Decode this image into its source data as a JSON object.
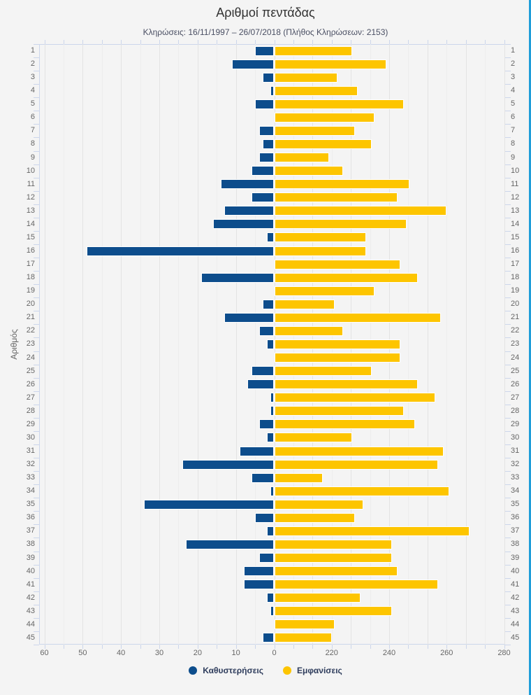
{
  "page": {
    "background": "#f4f4f4",
    "right_edge_color": "#1f9dd9"
  },
  "chart_data": {
    "type": "bar",
    "orientation": "horizontal-diverging",
    "title": "Αριθμοί πεντάδας",
    "subtitle": "Κληρώσεις: 16/11/1997 – 26/07/2018 (Πλήθος Κληρώσεων: 2153)",
    "category_axis_label": "Αριθμός",
    "categories": [
      1,
      2,
      3,
      4,
      5,
      6,
      7,
      8,
      9,
      10,
      11,
      12,
      13,
      14,
      15,
      16,
      17,
      18,
      19,
      20,
      21,
      22,
      23,
      24,
      25,
      26,
      27,
      28,
      29,
      30,
      31,
      32,
      33,
      34,
      35,
      36,
      37,
      38,
      39,
      40,
      41,
      42,
      43,
      44,
      45
    ],
    "series": [
      {
        "name": "Καθυστερήσεις",
        "color": "#0d4d8c",
        "direction": "left",
        "values": [
          5,
          11,
          3,
          1,
          5,
          0,
          4,
          3,
          4,
          6,
          14,
          6,
          13,
          16,
          2,
          49,
          0,
          19,
          0,
          3,
          13,
          4,
          2,
          0,
          6,
          7,
          1,
          1,
          4,
          2,
          9,
          24,
          6,
          1,
          34,
          5,
          2,
          23,
          4,
          8,
          8,
          2,
          1,
          0,
          3
        ]
      },
      {
        "name": "Εμφανίσεις",
        "color": "#fdc500",
        "direction": "right",
        "values": [
          227,
          239,
          222,
          229,
          245,
          235,
          228,
          234,
          219,
          224,
          247,
          243,
          260,
          246,
          232,
          232,
          244,
          250,
          235,
          221,
          258,
          224,
          244,
          244,
          234,
          250,
          256,
          245,
          249,
          227,
          259,
          257,
          217,
          261,
          231,
          228,
          268,
          241,
          241,
          243,
          257,
          230,
          241,
          221,
          220
        ]
      }
    ],
    "x_axis": {
      "left_ticks": [
        60,
        50,
        40,
        30,
        20,
        10,
        0
      ],
      "right_ticks": [
        220,
        240,
        260,
        280
      ],
      "left_range": [
        0,
        60
      ],
      "right_range": [
        200,
        280
      ],
      "grid": true
    },
    "legend_position": "bottom",
    "grid_color": "#e3e3e3",
    "axis_line_color": "#ccd6eb",
    "label_color": "#666666"
  }
}
